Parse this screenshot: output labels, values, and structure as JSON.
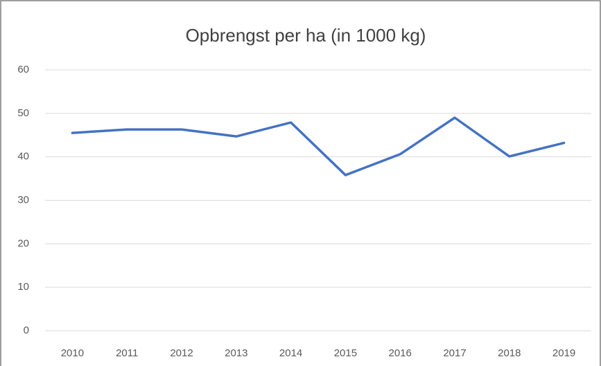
{
  "chart_data": {
    "type": "line",
    "title": "Opbrengst per ha (in 1000 kg)",
    "categories": [
      "2010",
      "2011",
      "2012",
      "2013",
      "2014",
      "2015",
      "2016",
      "2017",
      "2018",
      "2019"
    ],
    "values": [
      45.5,
      46.3,
      46.3,
      44.7,
      47.9,
      35.8,
      40.6,
      49.0,
      40.1,
      43.2
    ],
    "color": "#4472c4",
    "ylim": [
      0,
      60
    ],
    "yticks": [
      0,
      10,
      20,
      30,
      40,
      50,
      60
    ],
    "grid": true
  }
}
